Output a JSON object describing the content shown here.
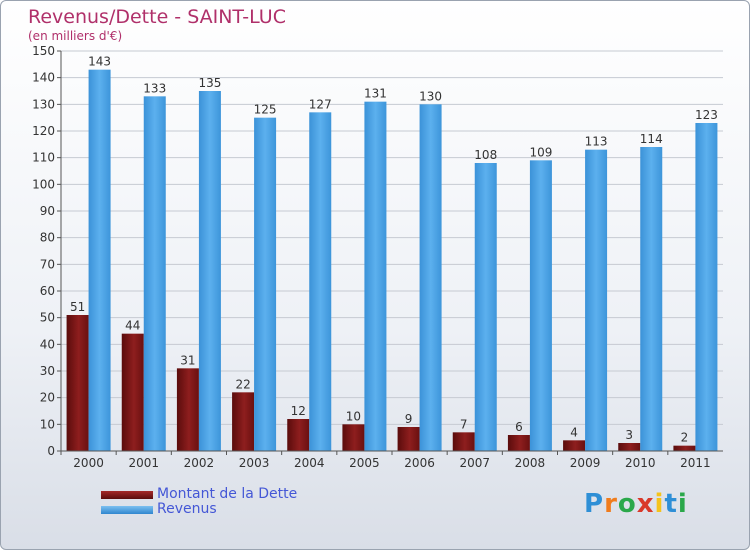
{
  "chart_data": {
    "type": "bar",
    "title": "Revenus/Dette - SAINT-LUC",
    "subtitle": "(en milliers d'€)",
    "categories": [
      "2000",
      "2001",
      "2002",
      "2003",
      "2004",
      "2005",
      "2006",
      "2007",
      "2008",
      "2009",
      "2010",
      "2011"
    ],
    "series": [
      {
        "name": "Montant de la Dette",
        "color": "#7a1414",
        "values": [
          51,
          44,
          31,
          22,
          12,
          10,
          9,
          7,
          6,
          4,
          3,
          2
        ]
      },
      {
        "name": "Revenus",
        "color": "#4ea5e6",
        "values": [
          143,
          133,
          135,
          125,
          127,
          131,
          130,
          108,
          109,
          113,
          114,
          123
        ]
      }
    ],
    "ylim": [
      0,
      150
    ],
    "yticks": [
      0,
      10,
      20,
      30,
      40,
      50,
      60,
      70,
      80,
      90,
      100,
      110,
      120,
      130,
      140,
      150
    ],
    "grid": true,
    "legend_position": "bottom-left"
  },
  "logo": {
    "text": "Proxiti"
  }
}
